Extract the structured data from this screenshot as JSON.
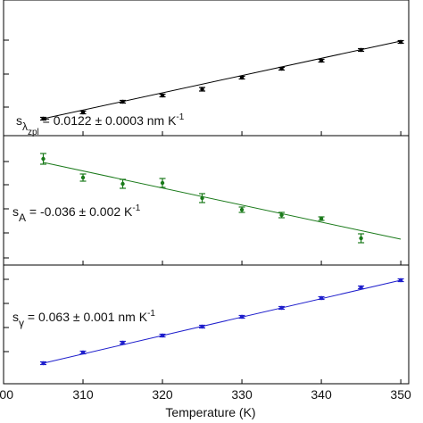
{
  "chart_data": [
    {
      "type": "scatter",
      "color": "#000000",
      "annotation": {
        "s": "s",
        "sub": "λ",
        "subsub": "zpl",
        "text": " = 0.0122 ± 0.0003 nm K",
        "sup": "-1"
      },
      "xlim": [
        300,
        351
      ],
      "xticks": [
        300,
        310,
        320,
        330,
        340,
        350
      ],
      "ylim": [
        0,
        152
      ],
      "yticks": [
        32,
        69,
        107
      ],
      "points": {
        "x": [
          305,
          310,
          315,
          320,
          325,
          330,
          335,
          340,
          345,
          350
        ],
        "values": [
          19,
          26,
          38,
          45,
          52,
          65,
          75,
          84,
          96,
          105
        ],
        "errors": [
          1.5,
          1.5,
          1.5,
          1.5,
          2,
          1.5,
          1.5,
          1.5,
          1.5,
          1.5
        ]
      },
      "fit": {
        "x": [
          305,
          350
        ],
        "values": [
          19,
          106
        ]
      }
    },
    {
      "type": "scatter",
      "color": "#1a7a1a",
      "annotation": {
        "s": "s",
        "sub": "A",
        "text": " = -0.036 ± 0.002 K",
        "sup": "-1"
      },
      "xlim": [
        300,
        351
      ],
      "xticks": [
        300,
        310,
        320,
        330,
        340,
        350
      ],
      "ylim": [
        0,
        145
      ],
      "yticks": [
        8,
        36,
        63,
        90,
        116
      ],
      "points": {
        "x": [
          305,
          310,
          315,
          320,
          325,
          330,
          335,
          340,
          345
        ],
        "values": [
          119,
          98,
          91,
          92,
          75,
          62,
          56,
          52,
          30
        ],
        "errors": [
          6,
          4,
          5,
          5,
          5,
          3,
          3,
          2,
          5
        ]
      },
      "fit": {
        "x": [
          305,
          350
        ],
        "values": [
          115,
          29
        ]
      }
    },
    {
      "type": "scatter",
      "color": "#1f1fcc",
      "annotation": {
        "s": "s",
        "sub": "γ",
        "text": " = 0.063 ± 0.001 nm K",
        "sup": "-1"
      },
      "xlim": [
        300,
        351
      ],
      "xticks": [
        {
          "value": 300,
          "label": "00"
        },
        310,
        320,
        330,
        340,
        350
      ],
      "xlabel": "Temperature (K)",
      "ylim": [
        0,
        133
      ],
      "yticks": [
        36,
        63,
        90,
        117
      ],
      "points": {
        "x": [
          305,
          310,
          315,
          320,
          325,
          330,
          335,
          340,
          345,
          350
        ],
        "values": [
          23,
          35,
          46,
          54,
          64,
          75,
          85,
          96,
          108,
          116
        ],
        "errors": [
          1.5,
          1.5,
          1.5,
          1.5,
          1.5,
          1.5,
          1.5,
          1.5,
          1.5,
          1.5
        ]
      },
      "fit": {
        "x": [
          305,
          350
        ],
        "values": [
          23,
          116
        ]
      }
    }
  ]
}
